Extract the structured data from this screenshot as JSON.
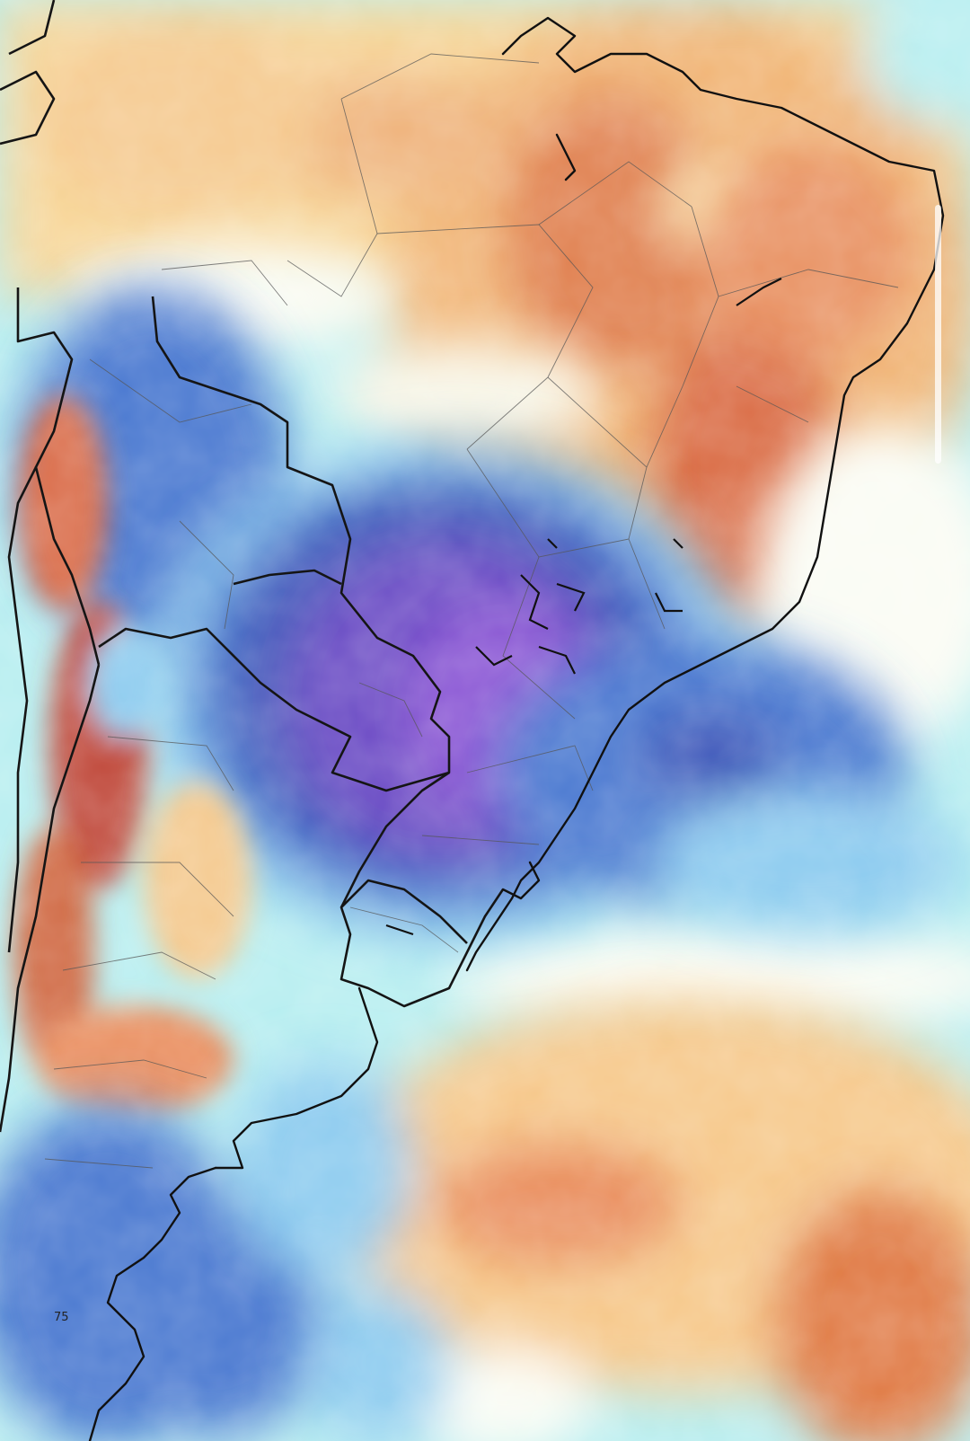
{
  "map": {
    "region_labels": [
      {
        "text": "75",
        "id": "southern-label"
      }
    ],
    "colors": {
      "deep_purple": "#8a55d4",
      "purple": "#6a4bc4",
      "dark_blue": "#3e55b8",
      "blue": "#4a78d0",
      "light_blue": "#8ccbef",
      "pale_cyan": "#b7eef0",
      "white": "#fafcf4",
      "pale_yellow": "#fbe7a8",
      "orange": "#f2b26e",
      "red_orange": "#e07a45",
      "dark_red": "#c0493a",
      "outline": "#111111"
    },
    "scrollbar": {
      "visible": true
    }
  }
}
